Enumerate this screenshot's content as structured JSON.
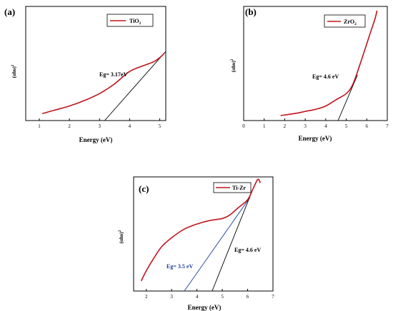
{
  "chart_data": [
    {
      "panel": "(a)",
      "type": "line",
      "legend": "TiO2",
      "xlabel": "Energy (eV)",
      "ylabel": "(αhυ)²",
      "xlim": [
        0.55,
        5.2
      ],
      "ylim": [
        -0.05,
        1.6
      ],
      "xticks": [
        "1",
        "2",
        "3",
        "4",
        "5"
      ],
      "series": [
        {
          "name": "TiO2",
          "x": [
            1.1,
            1.5,
            2.0,
            2.5,
            3.0,
            3.5,
            4.0,
            4.5,
            4.8,
            5.0,
            5.15
          ],
          "y": [
            0.05,
            0.1,
            0.16,
            0.24,
            0.34,
            0.48,
            0.66,
            0.75,
            0.8,
            0.86,
            0.92
          ]
        }
      ],
      "fit_lines": [
        {
          "x": [
            3.17,
            5.2
          ],
          "y": [
            -0.05,
            0.95
          ],
          "color": "#000000",
          "annotation": "Eg= 3.17eV"
        }
      ]
    },
    {
      "panel": "(b)",
      "type": "line",
      "legend": "ZrO2",
      "xlabel": "Energy (eV)",
      "ylabel": "(αhυ)²",
      "xlim": [
        0,
        7
      ],
      "ylim": [
        -0.05,
        2.7
      ],
      "xticks": [
        "0",
        "1",
        "2",
        "3",
        "4",
        "5",
        "6",
        "7"
      ],
      "series": [
        {
          "name": "ZrO2",
          "x": [
            1.8,
            2.5,
            3.0,
            3.5,
            4.0,
            4.5,
            5.0,
            5.3,
            5.6,
            6.0,
            6.2,
            6.4,
            6.5
          ],
          "y": [
            0.07,
            0.12,
            0.17,
            0.22,
            0.3,
            0.45,
            0.6,
            0.8,
            1.2,
            1.8,
            2.1,
            2.4,
            2.6
          ]
        }
      ],
      "fit_lines": [
        {
          "x": [
            4.6,
            5.55
          ],
          "y": [
            -0.05,
            1.05
          ],
          "color": "#000000",
          "annotation": "Eg= 4.6 eV"
        }
      ]
    },
    {
      "panel": "(c)",
      "type": "line",
      "legend": "Ti-Zr",
      "xlabel": "Energy (eV)",
      "ylabel": "(αhυ)²",
      "xlim": [
        1.5,
        7
      ],
      "ylim": [
        -0.05,
        2.2
      ],
      "xticks": [
        "2",
        "3",
        "4",
        "5",
        "6",
        "7"
      ],
      "series": [
        {
          "name": "Ti-Zr",
          "x": [
            1.8,
            2.0,
            2.3,
            2.6,
            3.0,
            3.5,
            4.0,
            4.5,
            5.0,
            5.3,
            5.6,
            6.0,
            6.2,
            6.4,
            6.5
          ],
          "y": [
            0.15,
            0.35,
            0.6,
            0.82,
            1.0,
            1.17,
            1.27,
            1.34,
            1.38,
            1.45,
            1.58,
            1.75,
            1.95,
            2.15,
            2.08
          ]
        }
      ],
      "fit_lines": [
        {
          "x": [
            3.5,
            6.1
          ],
          "y": [
            -0.05,
            1.8
          ],
          "color": "#1f3f9f",
          "annotation": "Eg= 3.5 eV"
        },
        {
          "x": [
            4.6,
            6.2
          ],
          "y": [
            -0.05,
            1.95
          ],
          "color": "#000000",
          "annotation": "Eg= 4.6 eV"
        }
      ]
    }
  ]
}
